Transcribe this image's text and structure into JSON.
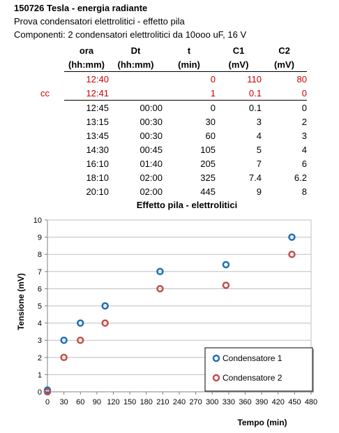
{
  "header": {
    "title": "150726 Tesla - energia radiante",
    "subtitle": "Prova condensatori elettrolitici - effetto pila",
    "components": "Componenti: 2 condensatori elettrolitici da 10ooo uF, 16 V"
  },
  "table": {
    "columns": [
      {
        "name": "ora",
        "unit": "(hh:mm)"
      },
      {
        "name": "Dt",
        "unit": "(hh:mm)"
      },
      {
        "name": "t",
        "unit": "(min)"
      },
      {
        "name": "C1",
        "unit": "(mV)"
      },
      {
        "name": "C2",
        "unit": "(mV)"
      }
    ],
    "rows": [
      {
        "tag": "",
        "ora": "12:40",
        "dt": "",
        "t": "0",
        "c1": "110",
        "c2": "80"
      },
      {
        "tag": "cc",
        "ora": "12:41",
        "dt": "",
        "t": "1",
        "c1": "0.1",
        "c2": "0"
      },
      {
        "tag": "",
        "ora": "12:45",
        "dt": "00:00",
        "t": "0",
        "c1": "0.1",
        "c2": "0"
      },
      {
        "tag": "",
        "ora": "13:15",
        "dt": "00:30",
        "t": "30",
        "c1": "3",
        "c2": "2"
      },
      {
        "tag": "",
        "ora": "13:45",
        "dt": "00:30",
        "t": "60",
        "c1": "4",
        "c2": "3"
      },
      {
        "tag": "",
        "ora": "14:30",
        "dt": "00:45",
        "t": "105",
        "c1": "5",
        "c2": "4"
      },
      {
        "tag": "",
        "ora": "16:10",
        "dt": "01:40",
        "t": "205",
        "c1": "7",
        "c2": "6"
      },
      {
        "tag": "",
        "ora": "18:10",
        "dt": "02:00",
        "t": "325",
        "c1": "7.4",
        "c2": "6.2"
      },
      {
        "tag": "",
        "ora": "20:10",
        "dt": "02:00",
        "t": "445",
        "c1": "9",
        "c2": "8"
      }
    ]
  },
  "colors": {
    "highlight": "#cc0000",
    "series1": "#1f6fb5",
    "series2": "#c0504d",
    "grid": "#bfbfbf"
  },
  "chart_data": {
    "type": "scatter",
    "title": "Effetto pila - elettrolitici",
    "xlabel": "Tempo (min)",
    "ylabel": "Tensione (mV)",
    "xlim": [
      0,
      480
    ],
    "ylim": [
      0,
      10
    ],
    "xticks": [
      0,
      30,
      60,
      90,
      120,
      150,
      180,
      210,
      240,
      270,
      300,
      330,
      360,
      390,
      420,
      450,
      480
    ],
    "yticks": [
      0,
      1,
      2,
      3,
      4,
      5,
      6,
      7,
      8,
      9,
      10
    ],
    "grid": "horizontal",
    "legend_position": "bottom-right",
    "marker": "open-circle",
    "series": [
      {
        "name": "Condensatore 1",
        "x": [
          0,
          30,
          60,
          105,
          205,
          325,
          445
        ],
        "y": [
          0.1,
          3,
          4,
          5,
          7,
          7.4,
          9
        ]
      },
      {
        "name": "Condensatore 2",
        "x": [
          0,
          30,
          60,
          105,
          205,
          325,
          445
        ],
        "y": [
          0,
          2,
          3,
          4,
          6,
          6.2,
          8
        ]
      }
    ]
  }
}
